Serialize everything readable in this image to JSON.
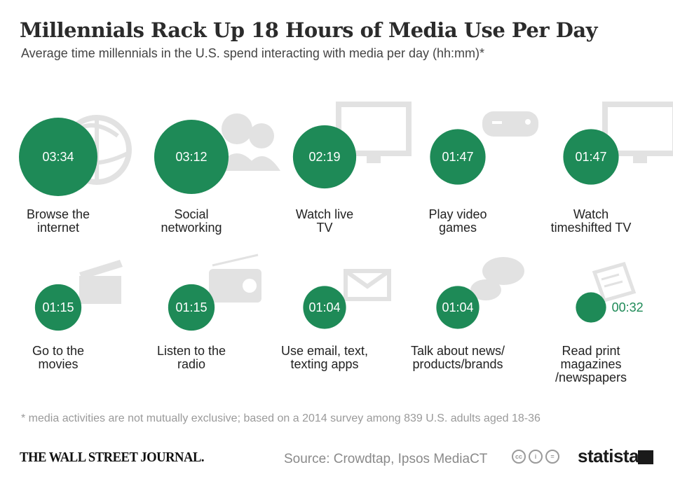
{
  "header": {
    "title": "Millennials Rack Up 18 Hours of Media Use Per Day",
    "subtitle": "Average time millennials in the U.S. spend interacting with media per day (hh:mm)*"
  },
  "footer": {
    "footnote": "* media activities are not mutually exclusive; based on a 2014 survey among 839 U.S. adults aged 18-36",
    "publisher": "THE WALL STREET JOURNAL.",
    "source": "Source: Crowdtap, Ipsos MediaCT",
    "brand": "statista"
  },
  "colors": {
    "bubble": "#1e8a57",
    "bubble_text": "#ffffff",
    "small_value_text": "#1e8a57",
    "icon": "#e2e2e2"
  },
  "chart_data": {
    "type": "bubble",
    "unit": "hh:mm",
    "categories": [
      "Browse the internet",
      "Social networking",
      "Watch live TV",
      "Play video games",
      "Watch timeshifted TV",
      "Go to the movies",
      "Listen to the radio",
      "Use email, text, texting apps",
      "Talk about news/ products/brands",
      "Read print magazines /newspapers"
    ],
    "category_lines": [
      [
        "Browse the",
        "internet"
      ],
      [
        "Social",
        "networking"
      ],
      [
        "Watch live",
        "TV"
      ],
      [
        "Play video",
        "games"
      ],
      [
        "Watch",
        "timeshifted TV"
      ],
      [
        "Go to the",
        "movies"
      ],
      [
        "Listen to the",
        "radio"
      ],
      [
        "Use email, text,",
        "texting apps"
      ],
      [
        "Talk about news/",
        "products/brands"
      ],
      [
        "Read print",
        "magazines",
        "/newspapers"
      ]
    ],
    "value_labels": [
      "03:34",
      "03:12",
      "02:19",
      "01:47",
      "01:47",
      "01:15",
      "01:15",
      "01:04",
      "01:04",
      "00:32"
    ],
    "values_minutes": [
      214,
      192,
      139,
      107,
      107,
      75,
      75,
      64,
      64,
      32
    ],
    "icons": [
      "globe-icon",
      "people-icon",
      "tv-icon",
      "gamepad-icon",
      "tv-icon",
      "clapperboard-icon",
      "radio-icon",
      "envelope-icon",
      "speech-bubbles-icon",
      "newspaper-icon"
    ]
  }
}
